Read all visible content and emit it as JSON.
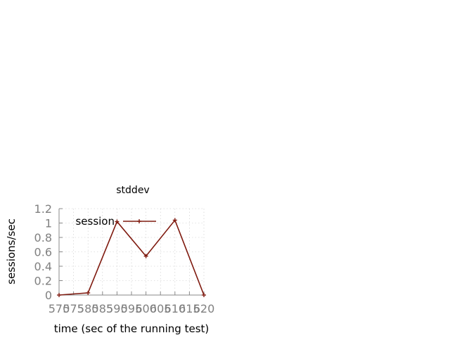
{
  "chart_data": {
    "type": "line",
    "title": "stddev",
    "xlabel": "time (sec of the running test)",
    "ylabel": "sessions/sec",
    "xlim": [
      570,
      620
    ],
    "ylim": [
      0,
      1.2
    ],
    "x_ticks": [
      570,
      575,
      580,
      585,
      590,
      595,
      600,
      605,
      610,
      615,
      620
    ],
    "x_tick_labels": [
      "570",
      "575",
      "580",
      "585",
      "590",
      "595",
      "600",
      "605",
      "610",
      "615",
      "620"
    ],
    "y_ticks": [
      0,
      0.2,
      0.4,
      0.6,
      0.8,
      1,
      1.2
    ],
    "y_tick_labels": [
      "0",
      "0.2",
      "0.4",
      "0.6",
      "0.8",
      "1",
      "1.2"
    ],
    "grid": true,
    "legend_position": "top-left",
    "series": [
      {
        "name": "session",
        "color": "#7f1a0f",
        "marker": "plus",
        "x": [
          570,
          580,
          590,
          600,
          610,
          620
        ],
        "y": [
          0,
          0.03,
          1.02,
          0.54,
          1.04,
          0
        ]
      }
    ]
  }
}
